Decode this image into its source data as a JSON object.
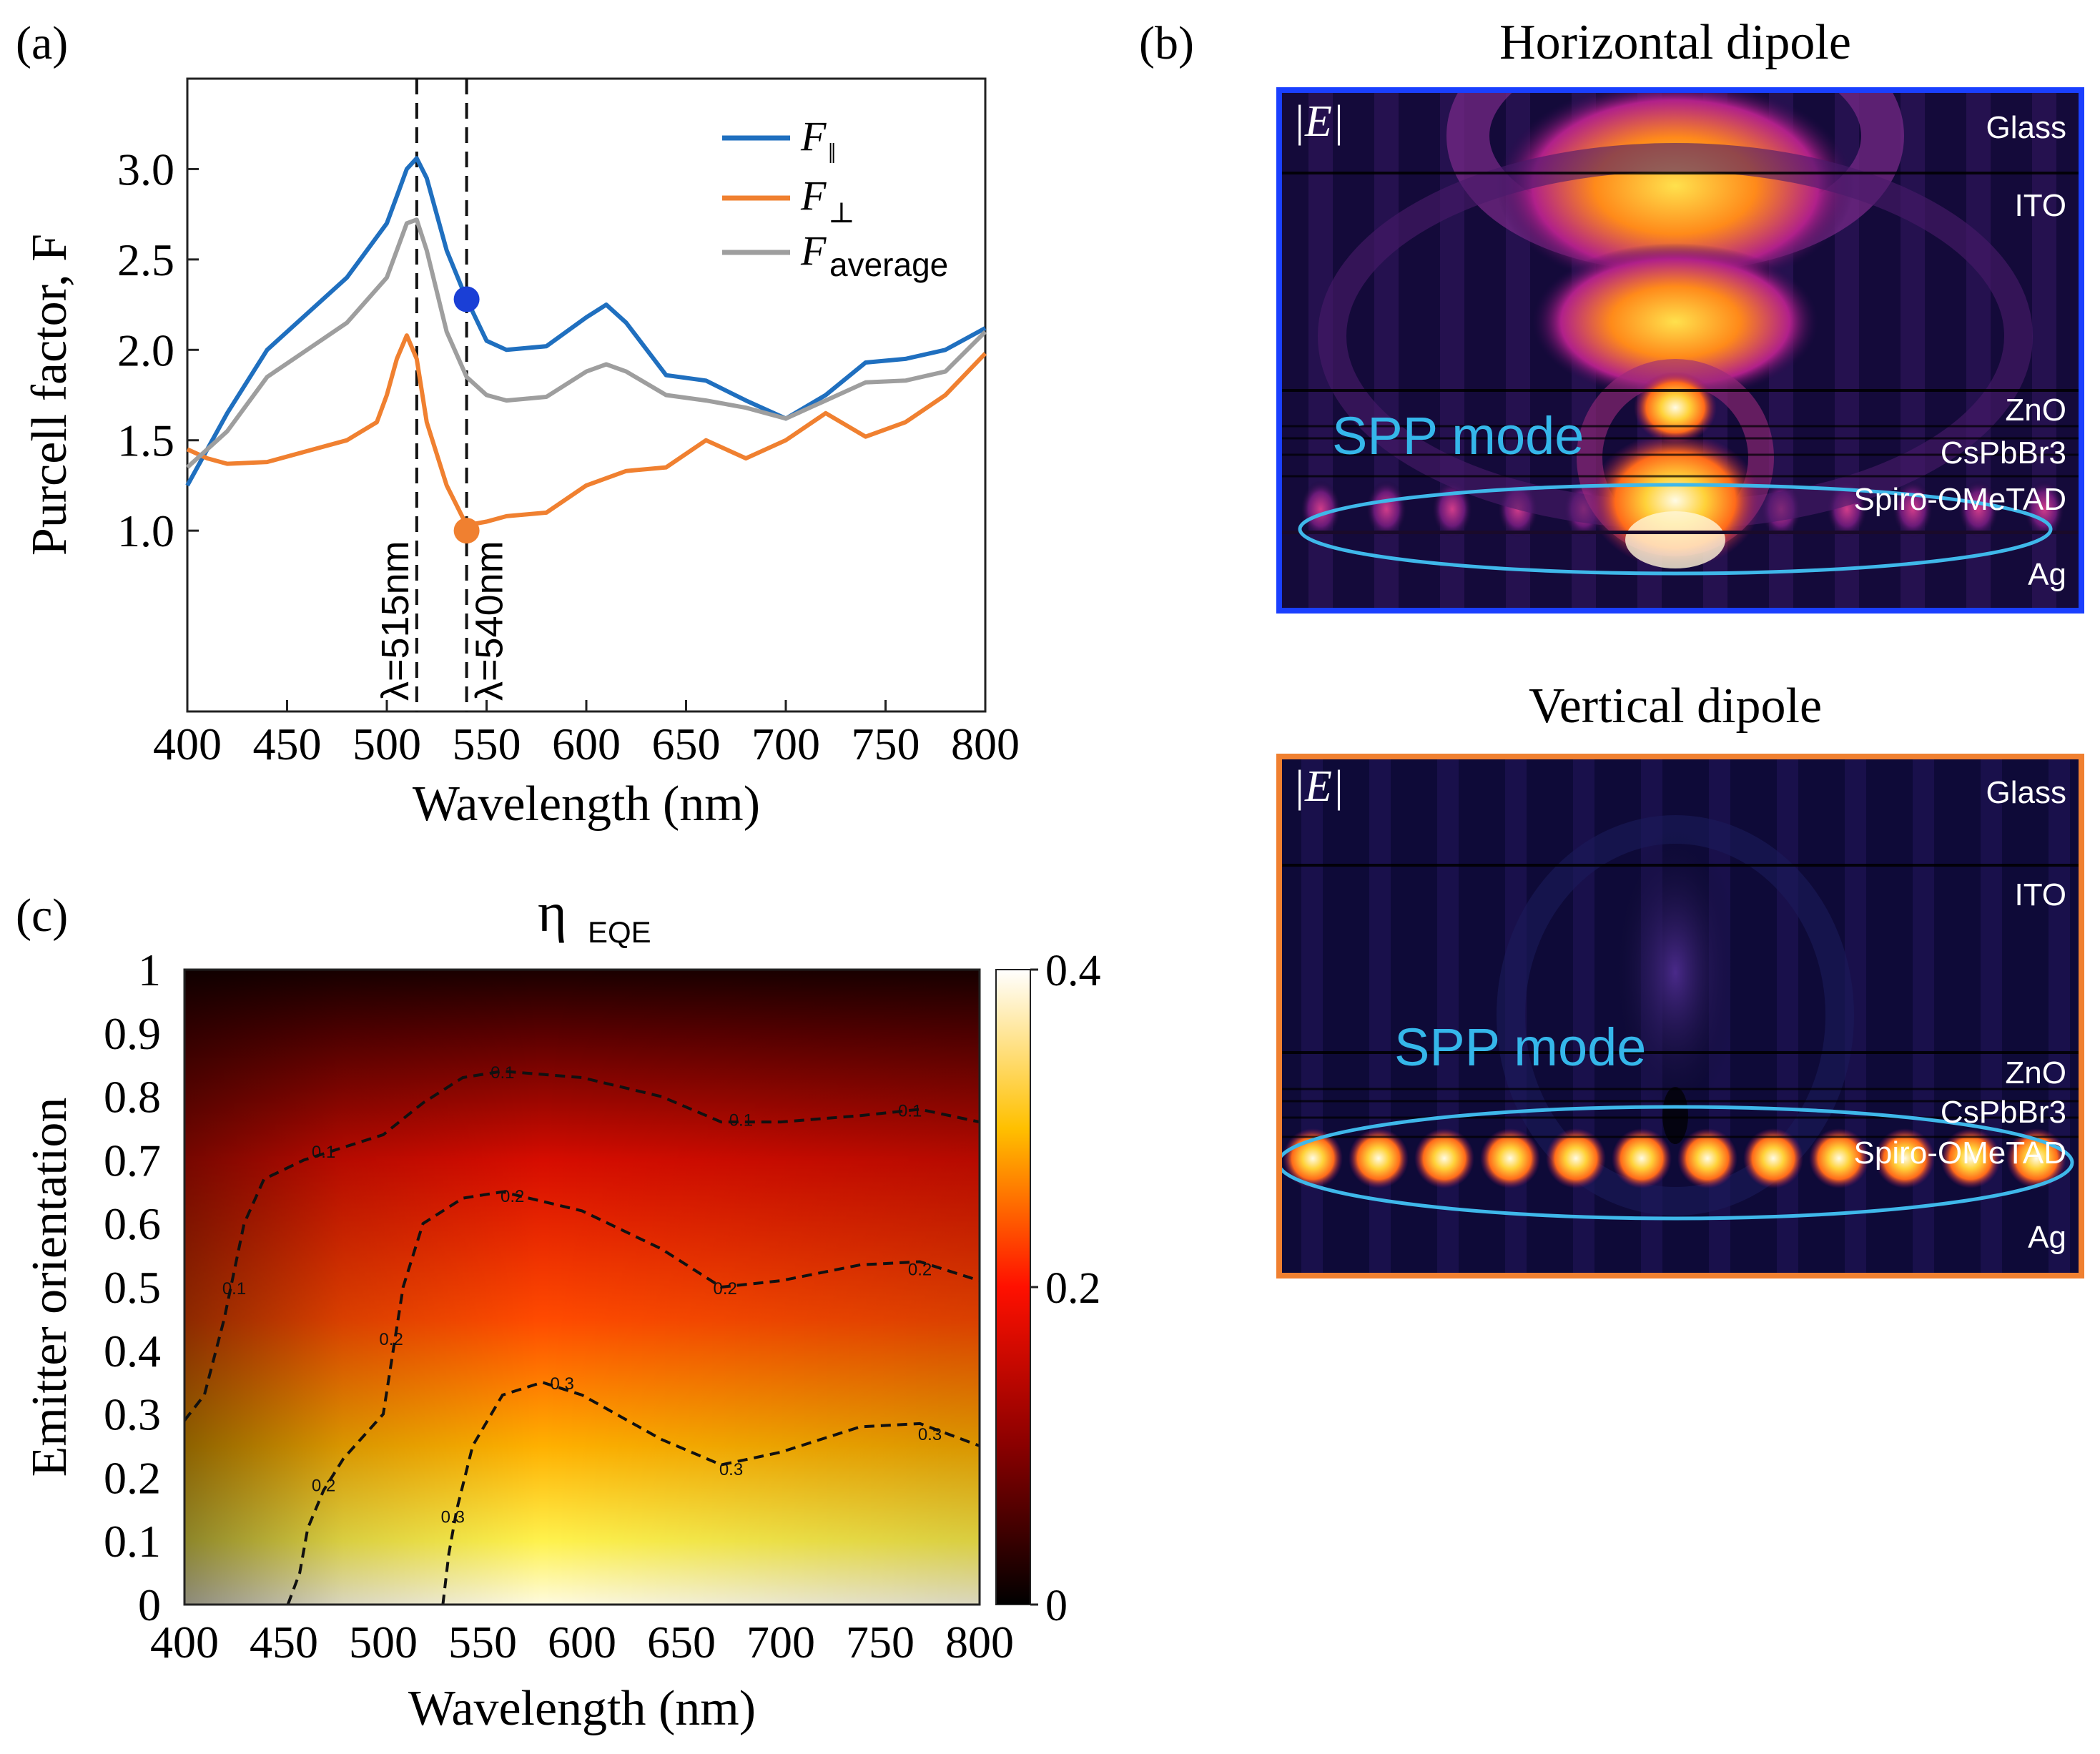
{
  "panel_labels": {
    "a": "(a)",
    "b": "(b)",
    "c": "(c)"
  },
  "chart_data": [
    {
      "id": "a",
      "type": "line",
      "title": "",
      "xlabel": "Wavelength (nm)",
      "ylabel": "Purcell factor, F",
      "xlim": [
        400,
        800
      ],
      "ylim": [
        0.0,
        3.5
      ],
      "xticks": [
        400,
        450,
        500,
        550,
        600,
        650,
        700,
        750,
        800
      ],
      "yticks": [
        1.0,
        1.5,
        2.0,
        2.5,
        3.0
      ],
      "ytick_labels": [
        "1.0",
        "1.5",
        "2.0",
        "2.5",
        "3.0"
      ],
      "legend": [
        {
          "key": "par",
          "label": "F",
          "sub": "‖",
          "color": "#1f6fbf"
        },
        {
          "key": "perp",
          "label": "F",
          "sub": "⊥",
          "color": "#f08030"
        },
        {
          "key": "avg",
          "label": "F",
          "sub": "average",
          "color": "#9e9e9e"
        }
      ],
      "legend_placement": "top-right",
      "series": [
        {
          "name": "F_parallel",
          "color": "#1f6fbf",
          "x": [
            400,
            420,
            440,
            460,
            480,
            500,
            505,
            510,
            515,
            520,
            530,
            540,
            550,
            560,
            580,
            600,
            610,
            620,
            640,
            660,
            680,
            700,
            720,
            740,
            760,
            780,
            800
          ],
          "y": [
            1.25,
            1.65,
            2.0,
            2.2,
            2.4,
            2.7,
            2.85,
            3.0,
            3.06,
            2.95,
            2.55,
            2.28,
            2.05,
            2.0,
            2.02,
            2.18,
            2.25,
            2.15,
            1.86,
            1.83,
            1.72,
            1.62,
            1.75,
            1.93,
            1.95,
            2.0,
            2.12
          ]
        },
        {
          "name": "F_perpendicular",
          "color": "#f08030",
          "x": [
            400,
            410,
            420,
            440,
            460,
            480,
            495,
            500,
            505,
            510,
            515,
            520,
            530,
            540,
            550,
            560,
            580,
            600,
            620,
            640,
            660,
            680,
            700,
            720,
            740,
            760,
            780,
            800
          ],
          "y": [
            1.45,
            1.4,
            1.37,
            1.38,
            1.44,
            1.5,
            1.6,
            1.75,
            1.95,
            2.08,
            1.95,
            1.6,
            1.25,
            1.03,
            1.05,
            1.08,
            1.1,
            1.25,
            1.33,
            1.35,
            1.5,
            1.4,
            1.5,
            1.65,
            1.52,
            1.6,
            1.75,
            1.98
          ]
        },
        {
          "name": "F_average",
          "color": "#9e9e9e",
          "x": [
            400,
            420,
            440,
            460,
            480,
            500,
            505,
            510,
            515,
            520,
            530,
            540,
            550,
            560,
            580,
            600,
            610,
            620,
            640,
            660,
            680,
            700,
            720,
            740,
            760,
            780,
            800
          ],
          "y": [
            1.35,
            1.55,
            1.85,
            2.0,
            2.15,
            2.4,
            2.55,
            2.7,
            2.72,
            2.55,
            2.1,
            1.85,
            1.75,
            1.72,
            1.74,
            1.88,
            1.92,
            1.88,
            1.75,
            1.72,
            1.68,
            1.62,
            1.72,
            1.82,
            1.83,
            1.88,
            2.1
          ]
        }
      ],
      "vlines": [
        {
          "x": 515,
          "label": "λ=515nm"
        },
        {
          "x": 540,
          "label": "λ=540nm"
        }
      ],
      "markers": [
        {
          "x": 540,
          "y": 2.28,
          "color": "#1a3fd6"
        },
        {
          "x": 540,
          "y": 1.0,
          "color": "#f08030"
        }
      ]
    },
    {
      "id": "c",
      "type": "heatmap",
      "title": "η",
      "title_sub": "EQE",
      "xlabel": "Wavelength (nm)",
      "ylabel": "Emitter orientation",
      "xlim": [
        400,
        800
      ],
      "ylim": [
        0,
        1
      ],
      "xticks": [
        400,
        450,
        500,
        550,
        600,
        650,
        700,
        750,
        800
      ],
      "yticks": [
        0,
        0.1,
        0.2,
        0.3,
        0.4,
        0.5,
        0.6,
        0.7,
        0.8,
        0.9,
        1
      ],
      "ytick_labels": [
        "0",
        "0.1",
        "0.2",
        "0.3",
        "0.4",
        "0.5",
        "0.6",
        "0.7",
        "0.8",
        "0.9",
        "1"
      ],
      "colorbar": {
        "min": 0,
        "max": 0.4,
        "ticks": [
          0,
          0.2,
          0.4
        ],
        "tick_labels": [
          "0",
          "0.2",
          "0.4"
        ]
      },
      "contours": [
        {
          "level": "0.1",
          "points": [
            [
              400,
              0.29
            ],
            [
              410,
              0.33
            ],
            [
              420,
              0.45
            ],
            [
              430,
              0.6
            ],
            [
              440,
              0.67
            ],
            [
              460,
              0.7
            ],
            [
              480,
              0.72
            ],
            [
              500,
              0.74
            ],
            [
              520,
              0.79
            ],
            [
              540,
              0.83
            ],
            [
              560,
              0.84
            ],
            [
              600,
              0.83
            ],
            [
              640,
              0.8
            ],
            [
              670,
              0.76
            ],
            [
              700,
              0.76
            ],
            [
              740,
              0.77
            ],
            [
              770,
              0.78
            ],
            [
              800,
              0.76
            ]
          ],
          "labels": [
            {
              "x": 560,
              "y": 0.84
            },
            {
              "x": 680,
              "y": 0.765
            },
            {
              "x": 765,
              "y": 0.78
            },
            {
              "x": 470,
              "y": 0.715
            },
            {
              "x": 425,
              "y": 0.5
            }
          ]
        },
        {
          "level": "0.2",
          "points": [
            [
              452,
              0.0
            ],
            [
              458,
              0.05
            ],
            [
              462,
              0.12
            ],
            [
              470,
              0.18
            ],
            [
              480,
              0.23
            ],
            [
              500,
              0.3
            ],
            [
              505,
              0.4
            ],
            [
              510,
              0.5
            ],
            [
              520,
              0.6
            ],
            [
              540,
              0.64
            ],
            [
              560,
              0.65
            ],
            [
              600,
              0.62
            ],
            [
              640,
              0.56
            ],
            [
              670,
              0.5
            ],
            [
              700,
              0.51
            ],
            [
              740,
              0.535
            ],
            [
              770,
              0.54
            ],
            [
              800,
              0.51
            ]
          ],
          "labels": [
            {
              "x": 565,
              "y": 0.645
            },
            {
              "x": 672,
              "y": 0.5
            },
            {
              "x": 770,
              "y": 0.53
            },
            {
              "x": 504,
              "y": 0.42
            },
            {
              "x": 470,
              "y": 0.19
            }
          ]
        },
        {
          "level": "0.3",
          "points": [
            [
              530,
              0.0
            ],
            [
              533,
              0.08
            ],
            [
              537,
              0.15
            ],
            [
              545,
              0.25
            ],
            [
              560,
              0.33
            ],
            [
              580,
              0.35
            ],
            [
              600,
              0.33
            ],
            [
              640,
              0.26
            ],
            [
              670,
              0.22
            ],
            [
              700,
              0.24
            ],
            [
              740,
              0.28
            ],
            [
              770,
              0.285
            ],
            [
              800,
              0.25
            ]
          ],
          "labels": [
            {
              "x": 590,
              "y": 0.35
            },
            {
              "x": 675,
              "y": 0.215
            },
            {
              "x": 775,
              "y": 0.27
            },
            {
              "x": 535,
              "y": 0.14
            }
          ]
        }
      ]
    }
  ],
  "field_maps": {
    "horizontal": {
      "title": "Horizontal dipole",
      "field_label": "|E|",
      "mode_label": "SPP mode",
      "border_color": "#1a3fff",
      "layers": [
        "Glass",
        "ITO",
        "ZnO",
        "CsPbBr3",
        "Spiro-OMeTAD",
        "Ag"
      ]
    },
    "vertical": {
      "title": "Vertical dipole",
      "field_label": "|E|",
      "mode_label": "SPP mode",
      "border_color": "#f08030",
      "layers": [
        "Glass",
        "ITO",
        "ZnO",
        "CsPbBr3",
        "Spiro-OMeTAD",
        "Ag"
      ]
    }
  }
}
